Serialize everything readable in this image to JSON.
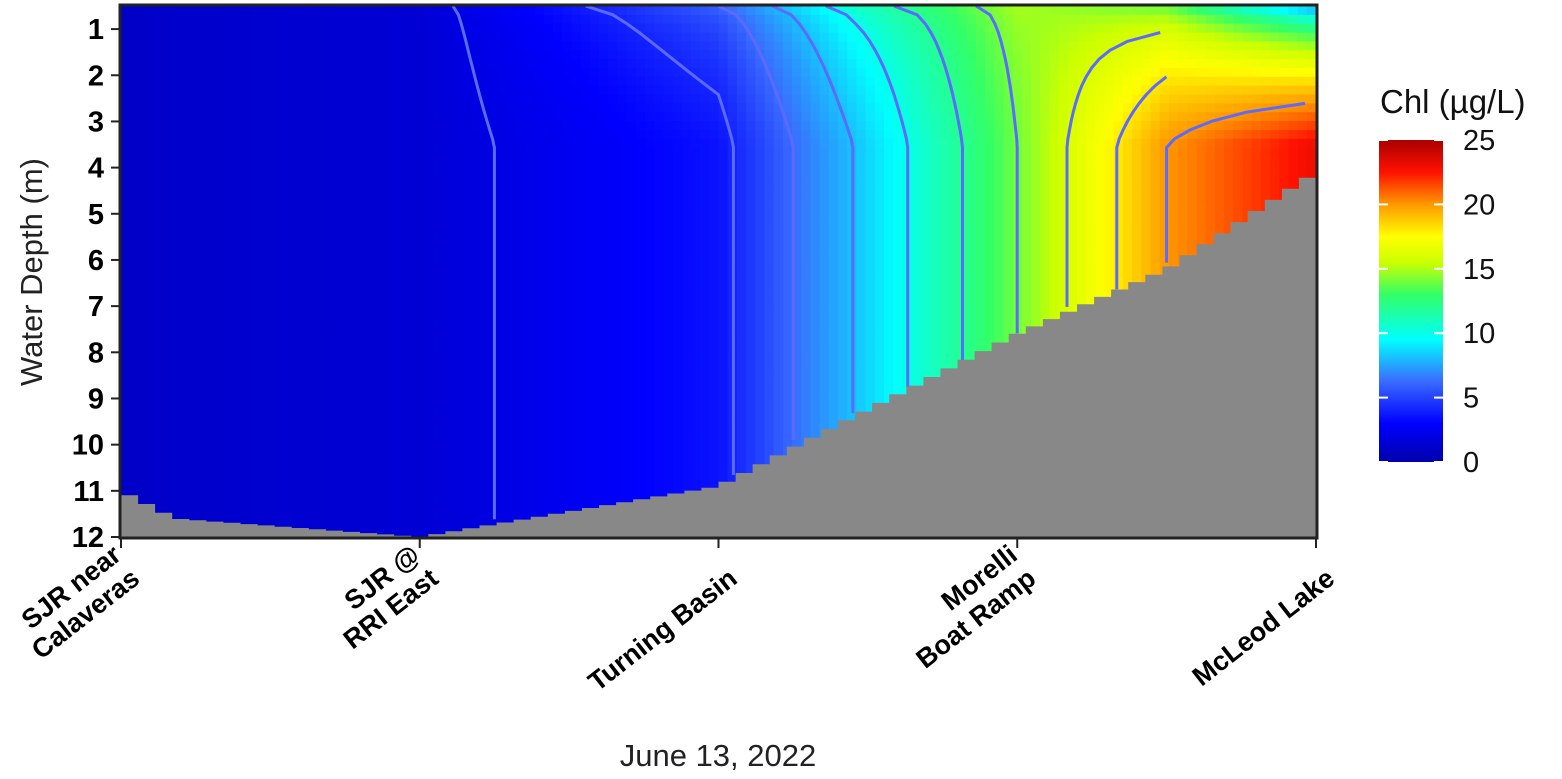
{
  "chart_data": {
    "type": "heatmap",
    "title": "",
    "xlabel": "June 13, 2022",
    "ylabel": "Water Depth (m)",
    "x_categories": [
      [
        "SJR near",
        "Calaveras"
      ],
      [
        "SJR @",
        "RRI East"
      ],
      [
        "Turning Basin"
      ],
      [
        "Morelli",
        "Boat Ramp"
      ],
      [
        "McLeod Lake"
      ]
    ],
    "y_ticks": [
      "1",
      "2",
      "3",
      "4",
      "5",
      "6",
      "7",
      "8",
      "9",
      "10",
      "11",
      "12"
    ],
    "ylim": [
      0.5,
      12
    ],
    "legend": {
      "title": "Chl (µg/L)",
      "range": [
        0,
        25
      ],
      "ticks": [
        "0",
        "5",
        "10",
        "15",
        "20",
        "25"
      ]
    },
    "colors": {
      "low": "#0000cc",
      "blue": "#1010ff",
      "cyan": "#00ffff",
      "green": "#33ff66",
      "yellow": "#ffff00",
      "orange": "#ff8800",
      "red": "#ff0000",
      "high": "#990000",
      "bottom": "#888888",
      "contour": "#5b6bff"
    },
    "contour_levels": [
      2,
      4,
      6,
      8,
      10,
      12,
      14,
      16,
      18,
      20
    ],
    "profiles": [
      {
        "x": 0,
        "bottom_depth": 11.0,
        "surface_chl": 1.0,
        "mid_chl": 1.0
      },
      {
        "x": 0.18,
        "bottom_depth": 11.6,
        "surface_chl": 1.2,
        "mid_chl": 1.2
      },
      {
        "x": 1,
        "bottom_depth": 12.0,
        "surface_chl": 1.5,
        "mid_chl": 1.5
      },
      {
        "x": 2,
        "bottom_depth": 10.9,
        "surface_chl": 6.0,
        "mid_chl": 3.5
      },
      {
        "x": 2.45,
        "bottom_depth": 9.4,
        "surface_chl": 11.0,
        "mid_chl": 8.0
      },
      {
        "x": 3,
        "bottom_depth": 7.6,
        "surface_chl": 15.0,
        "mid_chl": 14.0
      },
      {
        "x": 3.5,
        "bottom_depth": 6.2,
        "surface_chl": 13.0,
        "mid_chl": 20.0
      },
      {
        "x": 4,
        "bottom_depth": 4.1,
        "surface_chl": 5.0,
        "mid_chl": 23.0
      }
    ]
  }
}
